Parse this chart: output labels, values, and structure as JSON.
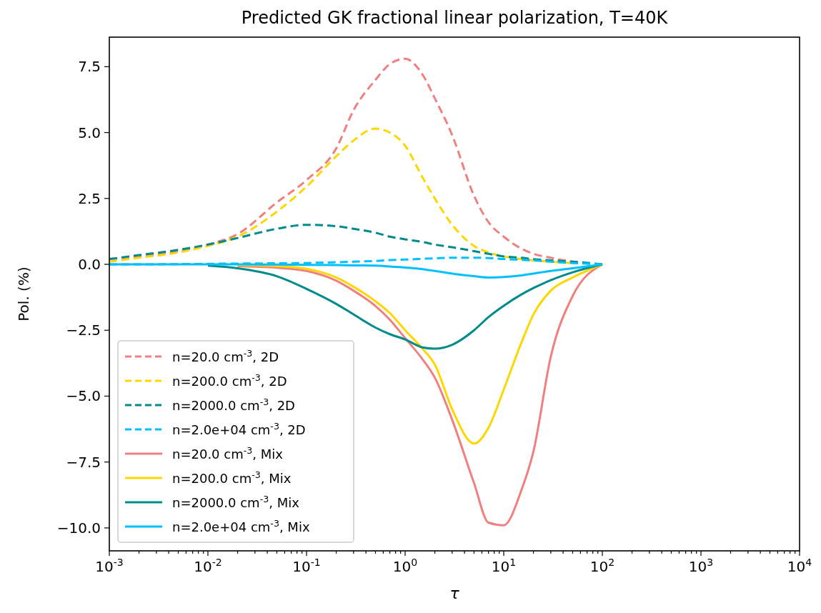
{
  "chart_data": {
    "type": "line",
    "title": "Predicted GK fractional linear polarization, T=40K",
    "xlabel": "τ",
    "ylabel": "Pol. (%)",
    "log": "x",
    "xlim": [
      0.001,
      10000
    ],
    "ylim": [
      -10.87,
      8.62
    ],
    "xticks": [
      {
        "value": 0.001,
        "label": "10$^{-3}$"
      },
      {
        "value": 0.01,
        "label": "10$^{-2}$"
      },
      {
        "value": 0.1,
        "label": "10$^{-1}$"
      },
      {
        "value": 1,
        "label": "10$^{0}$"
      },
      {
        "value": 10,
        "label": "10$^{1}$"
      },
      {
        "value": 100,
        "label": "10$^{2}$"
      },
      {
        "value": 1000,
        "label": "10$^{3}$"
      },
      {
        "value": 10000,
        "label": "10$^{4}$"
      },
      {
        "value": 0.002,
        "label": null
      },
      {
        "value": 0.003,
        "label": null
      },
      {
        "value": 0.004,
        "label": null
      },
      {
        "value": 0.005,
        "label": null
      },
      {
        "value": 0.006,
        "label": null
      },
      {
        "value": 0.007,
        "label": null
      },
      {
        "value": 0.008,
        "label": null
      },
      {
        "value": 0.009,
        "label": null
      },
      {
        "value": 0.02,
        "label": null
      },
      {
        "value": 0.03,
        "label": null
      },
      {
        "value": 0.04,
        "label": null
      },
      {
        "value": 0.05,
        "label": null
      },
      {
        "value": 0.06,
        "label": null
      },
      {
        "value": 0.07,
        "label": null
      },
      {
        "value": 0.08,
        "label": null
      },
      {
        "value": 0.09,
        "label": null
      },
      {
        "value": 0.2,
        "label": null
      },
      {
        "value": 0.3,
        "label": null
      },
      {
        "value": 0.4,
        "label": null
      },
      {
        "value": 0.5,
        "label": null
      },
      {
        "value": 0.6,
        "label": null
      },
      {
        "value": 0.7,
        "label": null
      },
      {
        "value": 0.8,
        "label": null
      },
      {
        "value": 0.9,
        "label": null
      },
      {
        "value": 2,
        "label": null
      },
      {
        "value": 3,
        "label": null
      },
      {
        "value": 4,
        "label": null
      },
      {
        "value": 5,
        "label": null
      },
      {
        "value": 6,
        "label": null
      },
      {
        "value": 7,
        "label": null
      },
      {
        "value": 8,
        "label": null
      },
      {
        "value": 9,
        "label": null
      },
      {
        "value": 20,
        "label": null
      },
      {
        "value": 30,
        "label": null
      },
      {
        "value": 40,
        "label": null
      },
      {
        "value": 50,
        "label": null
      },
      {
        "value": 60,
        "label": null
      },
      {
        "value": 70,
        "label": null
      },
      {
        "value": 80,
        "label": null
      },
      {
        "value": 90,
        "label": null
      },
      {
        "value": 200,
        "label": null
      },
      {
        "value": 300,
        "label": null
      },
      {
        "value": 400,
        "label": null
      },
      {
        "value": 500,
        "label": null
      },
      {
        "value": 600,
        "label": null
      },
      {
        "value": 700,
        "label": null
      },
      {
        "value": 800,
        "label": null
      },
      {
        "value": 900,
        "label": null
      },
      {
        "value": 2000,
        "label": null
      },
      {
        "value": 3000,
        "label": null
      },
      {
        "value": 4000,
        "label": null
      },
      {
        "value": 5000,
        "label": null
      },
      {
        "value": 6000,
        "label": null
      },
      {
        "value": 7000,
        "label": null
      },
      {
        "value": 8000,
        "label": null
      },
      {
        "value": 9000,
        "label": null
      }
    ],
    "yticks": [
      {
        "value": -10,
        "label": "−10.0"
      },
      {
        "value": -7.5,
        "label": "−7.5"
      },
      {
        "value": -5,
        "label": "−5.0"
      },
      {
        "value": -2.5,
        "label": "−2.5"
      },
      {
        "value": 0,
        "label": "0.0"
      },
      {
        "value": 2.5,
        "label": "2.5"
      },
      {
        "value": 5,
        "label": "5.0"
      },
      {
        "value": 7.5,
        "label": "7.5"
      }
    ],
    "grid": false,
    "legend": "bottom left",
    "x": [
      0.001,
      0.002,
      0.005,
      0.01,
      0.02,
      0.05,
      0.1,
      0.2,
      0.3,
      0.5,
      0.7,
      1,
      1.5,
      2,
      3,
      5,
      7,
      10,
      15,
      20,
      30,
      50,
      100
    ],
    "series": [
      {
        "name": "n=20.0 cm$^{-3}$, 2D",
        "color": "#f08080",
        "line_style": "dashed",
        "values": [
          0.2,
          0.3,
          0.5,
          0.75,
          1.15,
          2.35,
          3.2,
          4.4,
          5.85,
          7.0,
          7.6,
          7.8,
          7.2,
          6.3,
          4.9,
          2.6,
          1.6,
          1.05,
          0.6,
          0.4,
          0.25,
          0.1,
          0.0
        ]
      },
      {
        "name": "n=200.0 cm$^{-3}$, 2D",
        "color": "#ffd700",
        "line_style": "dashed",
        "values": [
          0.1,
          0.25,
          0.45,
          0.7,
          1.05,
          2.0,
          2.95,
          4.1,
          4.7,
          5.15,
          5.0,
          4.5,
          3.3,
          2.5,
          1.5,
          0.7,
          0.45,
          0.3,
          0.2,
          0.15,
          0.1,
          0.05,
          null
        ]
      },
      {
        "name": "n=2000.0 cm$^{-3}$, 2D",
        "color": "#008b8b",
        "line_style": "dashed",
        "values": [
          0.2,
          0.35,
          0.55,
          0.75,
          1.0,
          1.35,
          1.5,
          1.45,
          1.35,
          1.2,
          1.05,
          0.95,
          0.85,
          0.75,
          0.65,
          0.5,
          0.4,
          0.3,
          0.25,
          0.2,
          0.15,
          0.1,
          0.0
        ]
      },
      {
        "name": "n=2.0e+04 cm$^{-3}$, 2D",
        "color": "#00bfff",
        "line_style": "dashed",
        "values": [
          0.0,
          0.0,
          0.01,
          0.02,
          0.03,
          0.04,
          0.05,
          0.08,
          0.1,
          0.13,
          0.16,
          0.18,
          0.21,
          0.23,
          0.25,
          0.25,
          0.24,
          0.2,
          0.17,
          0.15,
          0.1,
          0.05,
          0.0
        ]
      },
      {
        "name": "n=20.0 cm$^{-3}$, Mix",
        "color": "#f08080",
        "line_style": "solid",
        "values": [
          null,
          null,
          null,
          null,
          -0.07,
          -0.13,
          -0.25,
          -0.62,
          -1.0,
          -1.58,
          -2.1,
          -2.8,
          -3.6,
          -4.3,
          -5.9,
          -8.3,
          -9.8,
          -9.9,
          -8.6,
          -7.1,
          -3.5,
          -1.2,
          0.0
        ]
      },
      {
        "name": "n=200.0 cm$^{-3}$, Mix",
        "color": "#ffd700",
        "line_style": "solid",
        "values": [
          null,
          null,
          null,
          null,
          -0.03,
          -0.07,
          -0.17,
          -0.5,
          -0.85,
          -1.4,
          -1.85,
          -2.5,
          -3.2,
          -3.8,
          -5.5,
          -6.8,
          -6.2,
          -4.75,
          -3.0,
          -1.9,
          -1.0,
          -0.5,
          0.0
        ]
      },
      {
        "name": "n=2000.0 cm$^{-3}$, Mix",
        "color": "#008b8b",
        "line_style": "solid",
        "values": [
          null,
          null,
          null,
          -0.05,
          -0.15,
          -0.45,
          -0.93,
          -1.5,
          -1.9,
          -2.4,
          -2.65,
          -2.85,
          -3.15,
          -3.2,
          -3.05,
          -2.5,
          -2.0,
          -1.57,
          -1.15,
          -0.9,
          -0.6,
          -0.3,
          0.0
        ]
      },
      {
        "name": "n=2.0e+04 cm$^{-3}$, Mix",
        "color": "#00bfff",
        "line_style": "solid",
        "values": [
          0.0,
          0.0,
          0.0,
          0.0,
          0.0,
          -0.01,
          -0.02,
          -0.03,
          -0.04,
          -0.05,
          -0.08,
          -0.12,
          -0.18,
          -0.25,
          -0.35,
          -0.45,
          -0.5,
          -0.48,
          -0.42,
          -0.35,
          -0.25,
          -0.15,
          0.0
        ]
      }
    ]
  }
}
